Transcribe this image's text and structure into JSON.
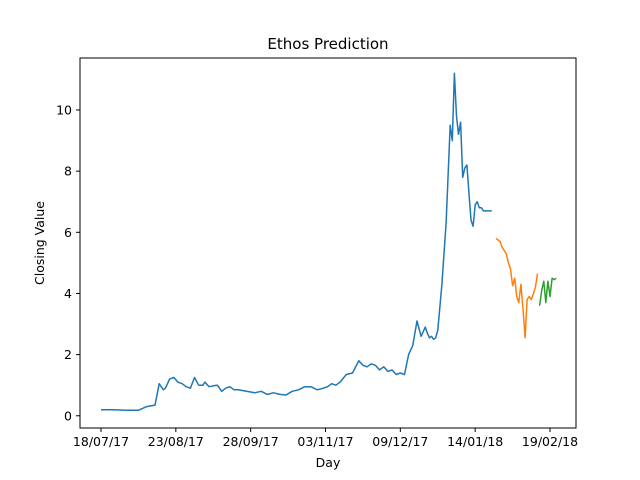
{
  "chart_data": {
    "type": "line",
    "title": "Ethos Prediction",
    "xlabel": "Day",
    "ylabel": "Closing Value",
    "x_tick_labels": [
      "18/07/17",
      "23/08/17",
      "28/09/17",
      "03/11/17",
      "09/12/17",
      "14/01/18",
      "19/02/18"
    ],
    "y_tick_labels": [
      "0",
      "2",
      "4",
      "6",
      "8",
      "10"
    ],
    "ylim": [
      -0.4,
      11.7
    ],
    "grid": false,
    "series": [
      {
        "color": "#1f77b4",
        "x": [
          "2017-07-18",
          "2017-07-24",
          "2017-07-30",
          "2017-08-05",
          "2017-08-09",
          "2017-08-13",
          "2017-08-15",
          "2017-08-17",
          "2017-08-18",
          "2017-08-20",
          "2017-08-22",
          "2017-08-24",
          "2017-08-26",
          "2017-08-28",
          "2017-08-30",
          "2017-09-01",
          "2017-09-03",
          "2017-09-05",
          "2017-09-06",
          "2017-09-08",
          "2017-09-10",
          "2017-09-12",
          "2017-09-14",
          "2017-09-16",
          "2017-09-18",
          "2017-09-20",
          "2017-09-22",
          "2017-09-26",
          "2017-09-30",
          "2017-10-03",
          "2017-10-06",
          "2017-10-09",
          "2017-10-12",
          "2017-10-15",
          "2017-10-18",
          "2017-10-21",
          "2017-10-24",
          "2017-10-27",
          "2017-10-30",
          "2017-11-02",
          "2017-11-04",
          "2017-11-06",
          "2017-11-08",
          "2017-11-10",
          "2017-11-13",
          "2017-11-16",
          "2017-11-19",
          "2017-11-21",
          "2017-11-23",
          "2017-11-25",
          "2017-11-27",
          "2017-11-29",
          "2017-12-01",
          "2017-12-03",
          "2017-12-05",
          "2017-12-07",
          "2017-12-09",
          "2017-12-11",
          "2017-12-13",
          "2017-12-15",
          "2017-12-17",
          "2017-12-19",
          "2017-12-21",
          "2017-12-22",
          "2017-12-23",
          "2017-12-24",
          "2017-12-25",
          "2017-12-26",
          "2017-12-27",
          "2017-12-29",
          "2017-12-31",
          "2018-01-02",
          "2018-01-03",
          "2018-01-04",
          "2018-01-05",
          "2018-01-06",
          "2018-01-07",
          "2018-01-08",
          "2018-01-09",
          "2018-01-10",
          "2018-01-11",
          "2018-01-12",
          "2018-01-13",
          "2018-01-14",
          "2018-01-15",
          "2018-01-16",
          "2018-01-17",
          "2018-01-18",
          "2018-01-19",
          "2018-01-20",
          "2018-01-21",
          "2018-01-22"
        ],
        "y": [
          0.2,
          0.2,
          0.18,
          0.18,
          0.3,
          0.35,
          1.05,
          0.85,
          0.9,
          1.2,
          1.25,
          1.1,
          1.05,
          0.95,
          0.9,
          1.25,
          1.0,
          1.0,
          1.1,
          0.95,
          0.98,
          1.0,
          0.8,
          0.9,
          0.95,
          0.85,
          0.85,
          0.8,
          0.75,
          0.8,
          0.7,
          0.75,
          0.7,
          0.68,
          0.8,
          0.85,
          0.95,
          0.95,
          0.85,
          0.9,
          0.95,
          1.05,
          1.0,
          1.1,
          1.35,
          1.4,
          1.8,
          1.65,
          1.6,
          1.7,
          1.65,
          1.5,
          1.6,
          1.45,
          1.5,
          1.35,
          1.4,
          1.35,
          2.0,
          2.3,
          3.1,
          2.6,
          2.9,
          2.7,
          2.55,
          2.6,
          2.5,
          2.55,
          2.8,
          4.3,
          6.3,
          9.5,
          9.0,
          11.2,
          9.8,
          9.2,
          9.6,
          7.8,
          8.1,
          8.2,
          7.3,
          6.4,
          6.2,
          6.9,
          7.0,
          6.8,
          6.8,
          6.7,
          6.7,
          6.7,
          6.7,
          6.7
        ]
      },
      {
        "color": "#ff7f0e",
        "x": [
          "2018-01-24",
          "2018-01-25",
          "2018-01-26",
          "2018-01-27",
          "2018-01-28",
          "2018-01-29",
          "2018-01-30",
          "2018-01-31",
          "2018-02-01",
          "2018-02-02",
          "2018-02-03",
          "2018-02-04",
          "2018-02-05",
          "2018-02-06",
          "2018-02-07",
          "2018-02-08",
          "2018-02-09",
          "2018-02-10",
          "2018-02-11",
          "2018-02-12",
          "2018-02-13"
        ],
        "y": [
          5.8,
          5.75,
          5.7,
          5.5,
          5.4,
          5.3,
          5.0,
          4.8,
          4.25,
          4.5,
          3.9,
          3.7,
          4.3,
          3.5,
          2.55,
          3.8,
          3.9,
          3.8,
          4.0,
          4.2,
          4.65
        ]
      },
      {
        "color": "#2ca02c",
        "x": [
          "2018-02-14",
          "2018-02-15",
          "2018-02-16",
          "2018-02-17",
          "2018-02-18",
          "2018-02-19",
          "2018-02-20",
          "2018-02-21",
          "2018-02-22"
        ],
        "y": [
          3.6,
          4.1,
          4.4,
          3.7,
          4.4,
          3.9,
          4.5,
          4.45,
          4.5
        ]
      }
    ]
  }
}
